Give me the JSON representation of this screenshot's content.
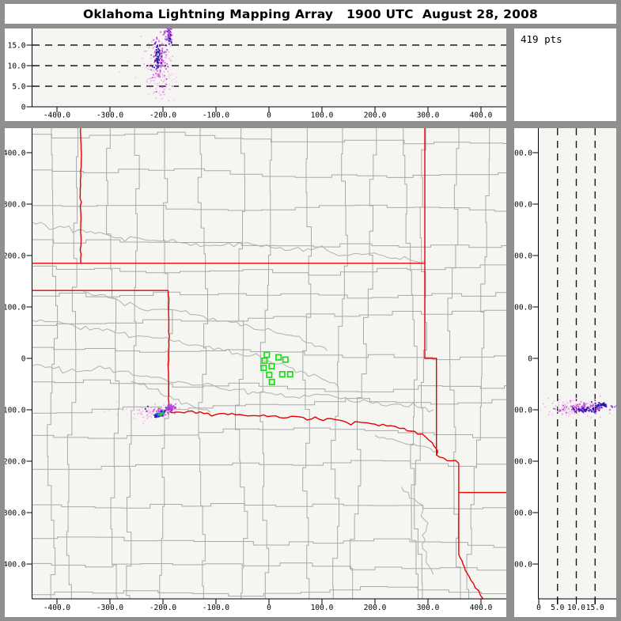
{
  "window": {
    "title": "Oklahoma Lightning Mapping Array   1900 UTC  August 28, 2008",
    "background": "#8f8f8f",
    "panel_background": "#ffffff",
    "plot_background": "#f5f5f2"
  },
  "stats": {
    "points_label": "419 pts"
  },
  "colors": {
    "axis": "#000000",
    "dashed_guide": "#1a1a1a",
    "state_border": "#e60000",
    "county_line": "#a9a9a9",
    "river_line": "#b0b0b0",
    "station_green": "#17dd17",
    "src_pink": "#f2aeea",
    "src_pink_light": "#f6c8f2",
    "src_violet": "#bf49dd",
    "src_navy": "#2414a8",
    "src_blue": "#2a52f0",
    "src_cyan": "#00b4dc",
    "src_green": "#2fc832",
    "src_purple": "#8c2fd0"
  },
  "chart_data": [
    {
      "id": "ew_altitude",
      "type": "scatter",
      "orientation": "x_km_vs_altitude_km",
      "xlim": [
        -446,
        448
      ],
      "ylim": [
        0,
        19
      ],
      "x_ticks": [
        {
          "v": -400,
          "label": "-400.0"
        },
        {
          "v": -300,
          "label": "-300.0"
        },
        {
          "v": -200,
          "label": "-200.0"
        },
        {
          "v": -100,
          "label": "-100.0"
        },
        {
          "v": 0,
          "label": "0"
        },
        {
          "v": 100,
          "label": "100.0"
        },
        {
          "v": 200,
          "label": "200.0"
        },
        {
          "v": 300,
          "label": "300.0"
        },
        {
          "v": 400,
          "label": "400.0"
        }
      ],
      "y_ticks": [
        {
          "v": 0,
          "label": "0"
        },
        {
          "v": 5,
          "label": "5.0"
        },
        {
          "v": 10,
          "label": "10.0"
        },
        {
          "v": 15,
          "label": "15.0"
        }
      ],
      "dashed_levels": [
        5,
        10,
        15
      ],
      "clusters": [
        {
          "name": "pink_halo",
          "color": "#f2aeea",
          "n": 120,
          "x": -205,
          "y": 11,
          "sx": 13,
          "sy": 4.6
        },
        {
          "name": "pink_low",
          "color": "#f6c8f2",
          "n": 30,
          "x": -207,
          "y": 5.5,
          "sx": 20,
          "sy": 1.8
        },
        {
          "name": "violet_mid",
          "color": "#bf49dd",
          "n": 90,
          "x": -204,
          "y": 12,
          "sx": 8,
          "sy": 3.4
        },
        {
          "name": "navy_west_core",
          "color": "#2414a8",
          "n": 55,
          "x": -211,
          "y": 12.3,
          "sx": 2.4,
          "sy": 1.9
        },
        {
          "name": "navy_east_core",
          "color": "#2414a8",
          "n": 40,
          "x": -188,
          "y": 17.3,
          "sx": 2.4,
          "sy": 1.3
        },
        {
          "name": "violet_east_top",
          "color": "#bf49dd",
          "n": 35,
          "x": -189,
          "y": 18,
          "sx": 3.5,
          "sy": 1.2
        },
        {
          "name": "pink_outliers",
          "color": "#f6c8f2",
          "n": 14,
          "x": -215,
          "y": 8,
          "sx": 38,
          "sy": 3.2
        }
      ]
    },
    {
      "id": "plan_view",
      "type": "scatter",
      "orientation": "x_km_vs_y_km_map",
      "xlim": [
        -446,
        448
      ],
      "ylim": [
        -468,
        448
      ],
      "x_ticks": [
        {
          "v": -400,
          "label": "-400.0"
        },
        {
          "v": -300,
          "label": "-300.0"
        },
        {
          "v": -200,
          "label": "-200.0"
        },
        {
          "v": -100,
          "label": "-100.0"
        },
        {
          "v": 0,
          "label": "0"
        },
        {
          "v": 100,
          "label": "100.0"
        },
        {
          "v": 200,
          "label": "200.0"
        },
        {
          "v": 300,
          "label": "300.0"
        },
        {
          "v": 400,
          "label": "400.0"
        }
      ],
      "y_ticks": [
        {
          "v": 400,
          "label": "400.0"
        },
        {
          "v": 300,
          "label": "300.0"
        },
        {
          "v": 200,
          "label": "200.0"
        },
        {
          "v": 100,
          "label": "100.0"
        },
        {
          "v": 0,
          "label": "0"
        },
        {
          "v": -100,
          "label": "-100.0"
        },
        {
          "v": -200,
          "label": "-200.0"
        },
        {
          "v": -300,
          "label": "-300.0"
        },
        {
          "v": -400,
          "label": "-400.0"
        }
      ],
      "stations": [
        [
          -4,
          7
        ],
        [
          -8.5,
          -4.5
        ],
        [
          18,
          2
        ],
        [
          31,
          -2.5
        ],
        [
          5,
          -15
        ],
        [
          -10,
          -18.5
        ],
        [
          25,
          -31
        ],
        [
          0.5,
          -32
        ],
        [
          40,
          -31
        ],
        [
          5.5,
          -46
        ]
      ],
      "state_borders": [
        {
          "name": "co_ks_102w",
          "wiggle": 0.8,
          "points": [
            [
              -355,
              450
            ],
            [
              -354,
              390
            ],
            [
              -356,
              320
            ],
            [
              -355,
              255
            ],
            [
              -355,
              185
            ]
          ]
        },
        {
          "name": "ks_south_37n",
          "wiggle": 0,
          "points": [
            [
              -448,
              185
            ],
            [
              294,
              185
            ]
          ]
        },
        {
          "name": "ok_panhandle_36_5n",
          "wiggle": 0,
          "points": [
            [
              -448,
              132
            ],
            [
              -190,
              132
            ]
          ]
        },
        {
          "name": "tx_ok_100w",
          "wiggle": 0.8,
          "points": [
            [
              -190,
              132
            ],
            [
              -189,
              60
            ],
            [
              -190,
              -20
            ],
            [
              -189,
              -70
            ],
            [
              -190,
              -103
            ]
          ]
        },
        {
          "name": "red_river",
          "wiggle": 2.2,
          "points": [
            [
              -190,
              -103
            ],
            [
              -160,
              -106
            ],
            [
              -130,
              -104
            ],
            [
              -100,
              -109
            ],
            [
              -70,
              -107
            ],
            [
              -40,
              -112
            ],
            [
              -10,
              -110
            ],
            [
              20,
              -115
            ],
            [
              50,
              -113
            ],
            [
              80,
              -118
            ],
            [
              110,
              -117
            ],
            [
              140,
              -122
            ],
            [
              170,
              -124
            ],
            [
              200,
              -128
            ],
            [
              230,
              -131
            ],
            [
              255,
              -136
            ],
            [
              275,
              -142
            ],
            [
              295,
              -152
            ],
            [
              308,
              -164
            ],
            [
              316,
              -176
            ],
            [
              316,
              -188
            ],
            [
              330,
              -194
            ],
            [
              344,
              -199
            ],
            [
              358,
              -204
            ]
          ]
        },
        {
          "name": "ok_mo_ar_east",
          "wiggle": 0,
          "points": [
            [
              294,
              450
            ],
            [
              294,
              0
            ],
            [
              316,
              0
            ],
            [
              316,
              -188
            ]
          ]
        },
        {
          "name": "tx_ar_94w",
          "wiggle": 0,
          "points": [
            [
              358,
              -204
            ],
            [
              358,
              -381
            ]
          ]
        },
        {
          "name": "ar_la_33n",
          "wiggle": 0,
          "points": [
            [
              358,
              -261
            ],
            [
              452,
              -261
            ]
          ]
        },
        {
          "name": "tx_la_sabine",
          "wiggle": 2.2,
          "points": [
            [
              358,
              -381
            ],
            [
              366,
              -400
            ],
            [
              374,
              -418
            ],
            [
              386,
              -438
            ],
            [
              396,
              -452
            ],
            [
              404,
              -468
            ]
          ]
        }
      ],
      "rivers": [
        {
          "name": "arkansas_river",
          "points": [
            [
              -448,
              265
            ],
            [
              -360,
              250
            ],
            [
              -280,
              235
            ],
            [
              -200,
              228
            ],
            [
              -120,
              220
            ],
            [
              -40,
              225
            ],
            [
              30,
              210
            ],
            [
              90,
              215
            ],
            [
              150,
              200
            ],
            [
              200,
              205
            ],
            [
              240,
              195
            ],
            [
              294,
              190
            ]
          ]
        },
        {
          "name": "cimarron_river",
          "points": [
            [
              -350,
              130
            ],
            [
              -280,
              110
            ],
            [
              -210,
              95
            ],
            [
              -140,
              85
            ],
            [
              -70,
              70
            ],
            [
              -10,
              55
            ],
            [
              40,
              45
            ],
            [
              80,
              30
            ],
            [
              110,
              15
            ]
          ]
        },
        {
          "name": "north_canadian_river",
          "points": [
            [
              -448,
              75
            ],
            [
              -370,
              65
            ],
            [
              -290,
              50
            ],
            [
              -210,
              40
            ],
            [
              -130,
              25
            ],
            [
              -60,
              10
            ],
            [
              0,
              -5
            ],
            [
              60,
              -25
            ],
            [
              100,
              -40
            ],
            [
              130,
              -55
            ]
          ]
        },
        {
          "name": "canadian_river",
          "points": [
            [
              -448,
              -15
            ],
            [
              -380,
              -25
            ],
            [
              -310,
              -20
            ],
            [
              -240,
              -35
            ],
            [
              -170,
              -45
            ],
            [
              -100,
              -55
            ],
            [
              -30,
              -65
            ],
            [
              40,
              -75
            ],
            [
              110,
              -70
            ],
            [
              170,
              -85
            ],
            [
              230,
              -90
            ],
            [
              280,
              -95
            ],
            [
              310,
              -100
            ]
          ]
        },
        {
          "name": "washita_river",
          "points": [
            [
              -260,
              -45
            ],
            [
              -220,
              -60
            ],
            [
              -180,
              -80
            ],
            [
              -140,
              -95
            ],
            [
              -110,
              -105
            ]
          ]
        },
        {
          "name": "sulphur_river",
          "points": [
            [
              200,
              -150
            ],
            [
              240,
              -160
            ],
            [
              280,
              -170
            ],
            [
              320,
              -178
            ]
          ]
        },
        {
          "name": "se_creek",
          "points": [
            [
              250,
              -250
            ],
            [
              280,
              -280
            ],
            [
              300,
              -320
            ],
            [
              290,
              -370
            ],
            [
              310,
              -420
            ]
          ]
        }
      ],
      "county_grid": {
        "seed": 11,
        "cell_min": 45,
        "cell_range": 28,
        "jitter": 9
      },
      "clusters": [
        {
          "name": "pink_halo",
          "color": "#f2aeea",
          "n": 60,
          "x": -212,
          "y": -104,
          "sx": 16,
          "sy": 7
        },
        {
          "name": "pink_spread",
          "color": "#f6c8f2",
          "n": 28,
          "x": -240,
          "y": -103,
          "sx": 28,
          "sy": 11
        },
        {
          "name": "violet_scatter",
          "color": "#bf49dd",
          "n": 30,
          "x": -205,
          "y": -106,
          "sx": 10,
          "sy": 4
        },
        {
          "name": "navy_streak",
          "type": "line",
          "color": "#2414a8",
          "n": 60,
          "p1": [
            -215,
            -113
          ],
          "p2": [
            -196,
            -104
          ],
          "jitter": 1.6
        },
        {
          "name": "blue_streak",
          "type": "line",
          "color": "#2a52f0",
          "n": 14,
          "p1": [
            -212,
            -112
          ],
          "p2": [
            -202,
            -107
          ],
          "jitter": 1.4
        },
        {
          "name": "cyan_streak",
          "type": "line",
          "color": "#00b4dc",
          "n": 22,
          "p1": [
            -208,
            -110
          ],
          "p2": [
            -199,
            -106
          ],
          "jitter": 1.2
        },
        {
          "name": "green_bits",
          "color": "#2fc832",
          "n": 7,
          "x": -204,
          "y": -108,
          "sx": 2.2,
          "sy": 1.6
        },
        {
          "name": "purple_blob",
          "color": "#8c2fd0",
          "n": 40,
          "x": -186,
          "y": -97,
          "sx": 3.4,
          "sy": 3
        },
        {
          "name": "violet_blob",
          "color": "#bf49dd",
          "n": 20,
          "x": -184,
          "y": -94,
          "sx": 4,
          "sy": 3
        },
        {
          "name": "navy_outliers",
          "color": "#2414a8",
          "n": 3,
          "x": -232,
          "y": -99,
          "sx": 6,
          "sy": 4
        }
      ]
    },
    {
      "id": "ns_altitude",
      "type": "scatter",
      "orientation": "altitude_km_vs_y_km",
      "xlim": [
        0,
        20.6
      ],
      "ylim": [
        -468,
        448
      ],
      "x_ticks": [
        {
          "v": 0,
          "label": "0"
        },
        {
          "v": 5,
          "label": "5.0"
        },
        {
          "v": 10,
          "label": "10.0"
        },
        {
          "v": 15,
          "label": "15.0"
        }
      ],
      "y_ticks": [
        {
          "v": 400,
          "label": "400.0"
        },
        {
          "v": 300,
          "label": "300.0"
        },
        {
          "v": 200,
          "label": "200.0"
        },
        {
          "v": 100,
          "label": "100.0"
        },
        {
          "v": 0,
          "label": "0"
        },
        {
          "v": -100,
          "label": "-100.0"
        },
        {
          "v": -200,
          "label": "-200.0"
        },
        {
          "v": -300,
          "label": "-300.0"
        },
        {
          "v": -400,
          "label": "-400.0"
        }
      ],
      "dashed_levels": [
        5,
        10,
        15
      ],
      "clusters": [
        {
          "name": "pink_halo",
          "color": "#f2aeea",
          "n": 120,
          "x": 11,
          "y": -95,
          "sx": 4.6,
          "sy": 7.5
        },
        {
          "name": "pink_spread",
          "color": "#f6c8f2",
          "n": 20,
          "x": 8,
          "y": -100,
          "sx": 3.5,
          "sy": 9
        },
        {
          "name": "violet_mid",
          "color": "#bf49dd",
          "n": 90,
          "x": 12,
          "y": -97,
          "sx": 3.4,
          "sy": 4.5
        },
        {
          "name": "navy_low_core",
          "color": "#2414a8",
          "n": 45,
          "x": 12.3,
          "y": -100,
          "sx": 1.9,
          "sy": 2.2
        },
        {
          "name": "navy_high_core",
          "color": "#2414a8",
          "n": 40,
          "x": 16.8,
          "y": -91,
          "sx": 1.4,
          "sy": 2.4
        }
      ]
    }
  ]
}
